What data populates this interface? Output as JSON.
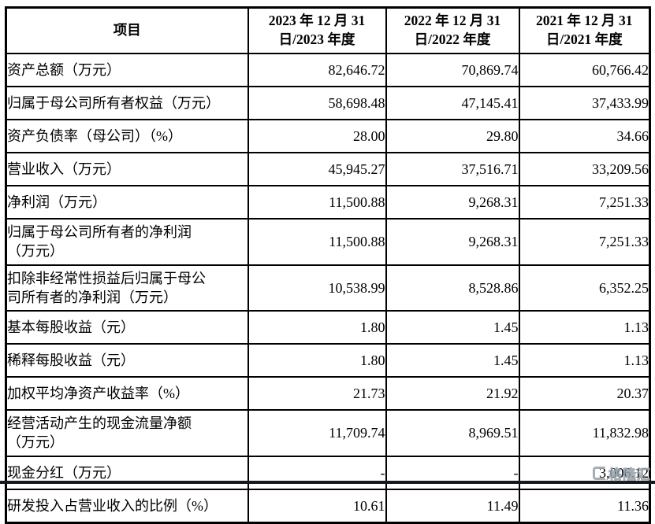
{
  "table": {
    "header": {
      "item_label": "项目",
      "periods": [
        "2023 年 12 月 31\n日/2023 年度",
        "2022 年 12 月 31\n日/2022 年度",
        "2021 年 12 月 31\n日/2021 年度"
      ]
    },
    "rows": [
      {
        "label": "资产总额（万元）",
        "values": [
          "82,646.72",
          "70,869.74",
          "60,766.42"
        ]
      },
      {
        "label": "归属于母公司所有者权益（万元）",
        "values": [
          "58,698.48",
          "47,145.41",
          "37,433.99"
        ]
      },
      {
        "label": "资产负债率（母公司）（%）",
        "values": [
          "28.00",
          "29.80",
          "34.66"
        ]
      },
      {
        "label": "营业收入（万元）",
        "values": [
          "45,945.27",
          "37,516.71",
          "33,209.56"
        ]
      },
      {
        "label": "净利润（万元）",
        "values": [
          "11,500.88",
          "9,268.31",
          "7,251.33"
        ]
      },
      {
        "label": "归属于母公司所有者的净利润\n（万元）",
        "values": [
          "11,500.88",
          "9,268.31",
          "7,251.33"
        ]
      },
      {
        "label": "扣除非经常性损益后归属于母公\n司所有者的净利润（万元）",
        "values": [
          "10,538.99",
          "8,528.86",
          "6,352.25"
        ]
      },
      {
        "label": "基本每股收益（元）",
        "values": [
          "1.80",
          "1.45",
          "1.13"
        ]
      },
      {
        "label": "稀释每股收益（元）",
        "values": [
          "1.80",
          "1.45",
          "1.13"
        ]
      },
      {
        "label": "加权平均净资产收益率（%）",
        "values": [
          "21.73",
          "21.92",
          "20.37"
        ]
      },
      {
        "label": "经营活动产生的现金流量净额\n（万元）",
        "values": [
          "11,709.74",
          "8,969.51",
          "11,832.98"
        ]
      },
      {
        "label": "现金分红（万元）",
        "values": [
          "-",
          "-",
          "3,006.12"
        ]
      },
      {
        "label": "研发投入占营业收入的比例（%）",
        "values": [
          "10.61",
          "11.49",
          "11.36"
        ]
      }
    ]
  },
  "watermark": {
    "text": "格隆汇"
  },
  "colors": {
    "border": "#000000",
    "text": "#000000",
    "watermark": "#97a0a9",
    "bottom_bar": "#15181c"
  }
}
